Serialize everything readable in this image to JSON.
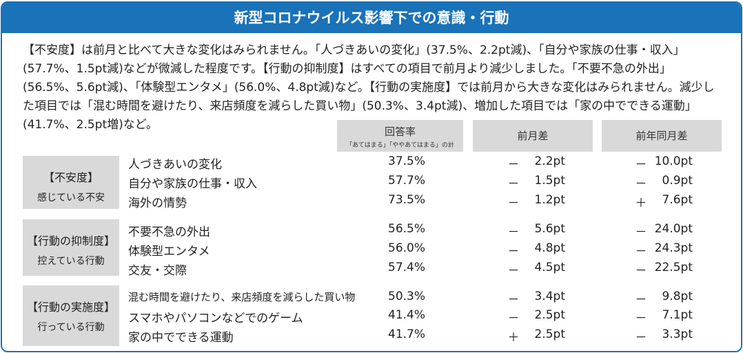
{
  "header": {
    "title": "新型コロナウイルス影響下での意識・行動"
  },
  "summary": "【不安度】は前月と比べて大きな変化はみられません。「人づきあいの変化」(37.5%、2.2pt減)、「自分や家族の仕事・収入」(57.7%、1.5pt減)などが微減した程度です。【行動の抑制度】はすべての項目で前月より減少しました。「不要不急の外出」(56.5%、5.6pt減)、「体験型エンタメ」(56.0%、4.8pt減)など。【行動の実施度】では前月から大きな変化はみられません。減少した項目では「混む時間を避けたり、来店頻度を減らした買い物」(50.3%、3.4pt減)、増加した項目では「家の中でできる運動」(41.7%、2.5pt増)など。",
  "columns": {
    "rate_label": "回答率",
    "rate_note": "「あてはまる」「ややあてはまる」の計",
    "mom_label": "前月差",
    "yoy_label": "前年同月差"
  },
  "groups": [
    {
      "title": "【不安度】",
      "subtitle": "感じている不安",
      "rows": [
        {
          "label": "人づきあいの変化",
          "rate": "37.5%",
          "mom_sign": "－",
          "mom": "2.2pt",
          "yoy_sign": "－",
          "yoy": "10.0pt"
        },
        {
          "label": "自分や家族の仕事・収入",
          "rate": "57.7%",
          "mom_sign": "－",
          "mom": "1.5pt",
          "yoy_sign": "－",
          "yoy": "0.9pt"
        },
        {
          "label": "海外の情勢",
          "rate": "73.5%",
          "mom_sign": "－",
          "mom": "1.2pt",
          "yoy_sign": "＋",
          "yoy": "7.6pt"
        }
      ]
    },
    {
      "title": "【行動の抑制度】",
      "subtitle": "控えている行動",
      "rows": [
        {
          "label": "不要不急の外出",
          "rate": "56.5%",
          "mom_sign": "－",
          "mom": "5.6pt",
          "yoy_sign": "－",
          "yoy": "24.0pt"
        },
        {
          "label": "体験型エンタメ",
          "rate": "56.0%",
          "mom_sign": "－",
          "mom": "4.8pt",
          "yoy_sign": "－",
          "yoy": "24.3pt"
        },
        {
          "label": "交友・交際",
          "rate": "57.4%",
          "mom_sign": "－",
          "mom": "4.5pt",
          "yoy_sign": "－",
          "yoy": "22.5pt"
        }
      ]
    },
    {
      "title": "【行動の実施度】",
      "subtitle": "行っている行動",
      "rows": [
        {
          "label": "混む時間を避けたり、来店頻度を減らした買い物",
          "rate": "50.3%",
          "mom_sign": "－",
          "mom": "3.4pt",
          "yoy_sign": "－",
          "yoy": "9.8pt"
        },
        {
          "label": "スマホやパソコンなどでのゲーム",
          "rate": "41.4%",
          "mom_sign": "－",
          "mom": "2.5pt",
          "yoy_sign": "－",
          "yoy": "7.1pt"
        },
        {
          "label": "家の中でできる運動",
          "rate": "41.7%",
          "mom_sign": "＋",
          "mom": "2.5pt",
          "yoy_sign": "－",
          "yoy": "3.3pt"
        }
      ]
    }
  ]
}
